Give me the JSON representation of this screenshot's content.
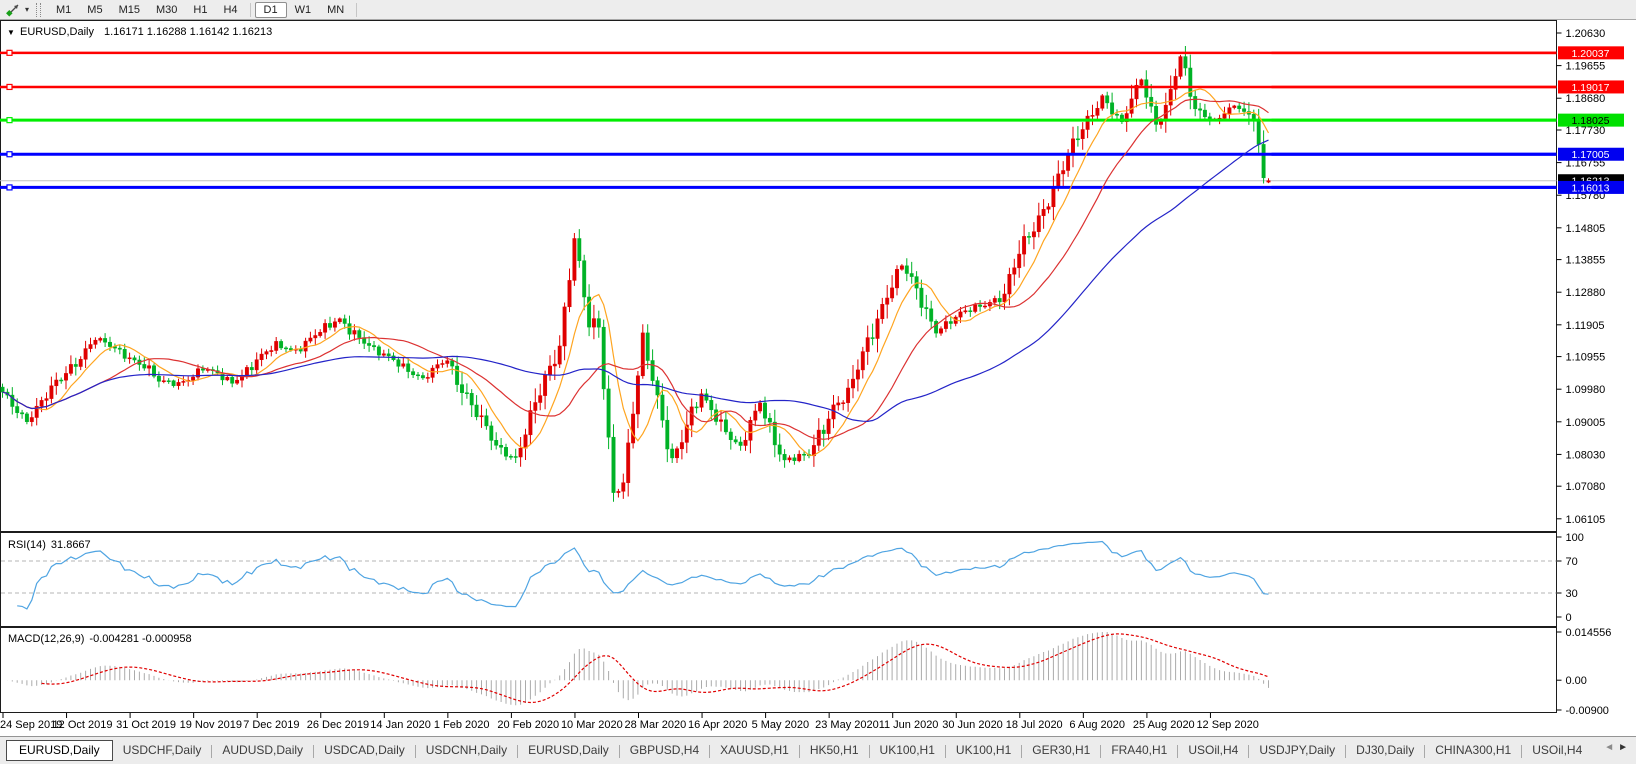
{
  "icons": {
    "collapse_triangle": "▼",
    "tool_caret": "▾",
    "scroll_left": "◄",
    "scroll_right": "►"
  },
  "toolbar": {
    "timeframe_groups": [
      [
        "M1",
        "M5",
        "M15",
        "M30",
        "H1",
        "H4"
      ],
      [
        "D1",
        "W1",
        "MN"
      ]
    ],
    "active_timeframe": "D1"
  },
  "chart_data": {
    "type": "candlestick",
    "title": "EURUSD,Daily",
    "quote_line": "1.16171 1.16288 1.16142 1.16213",
    "quote": {
      "open": "1.16171",
      "high": "1.16288",
      "low": "1.16142",
      "close": "1.16213"
    },
    "bar_count": 260,
    "ylim": [
      1.06105,
      1.2063
    ],
    "colors": {
      "bull_candle": "#DF0000",
      "bear_candle": "#00B227",
      "ma_fast": "#FFA520",
      "ma_mid": "#DC3232",
      "ma_slow": "#2424C8",
      "current_price_line": "#C0C0C0",
      "rsi_line": "#4FA4E2",
      "rsi_levels": "#B4B4B4",
      "macd_bars": "#ABABAB",
      "macd_signal": "#E00000"
    },
    "close_anchors": [
      [
        0,
        1.0985
      ],
      [
        5,
        1.0905
      ],
      [
        12,
        1.103
      ],
      [
        19,
        1.115
      ],
      [
        24,
        1.111
      ],
      [
        29,
        1.107
      ],
      [
        32,
        1.102
      ],
      [
        36,
        1.1015
      ],
      [
        41,
        1.106
      ],
      [
        47,
        1.102
      ],
      [
        56,
        1.113
      ],
      [
        60,
        1.1115
      ],
      [
        69,
        1.121
      ],
      [
        76,
        1.111
      ],
      [
        80,
        1.109
      ],
      [
        86,
        1.1025
      ],
      [
        91,
        1.109
      ],
      [
        96,
        1.0945
      ],
      [
        101,
        1.083
      ],
      [
        105,
        1.079
      ],
      [
        111,
        1.1025
      ],
      [
        114,
        1.1135
      ],
      [
        117,
        1.145
      ],
      [
        119,
        1.127
      ],
      [
        120,
        1.1185
      ],
      [
        122,
        1.118
      ],
      [
        125,
        1.069
      ],
      [
        127,
        1.072
      ],
      [
        131,
        1.114
      ],
      [
        133,
        1.103
      ],
      [
        137,
        1.079
      ],
      [
        143,
        1.098
      ],
      [
        151,
        1.082
      ],
      [
        155,
        1.0955
      ],
      [
        160,
        1.0785
      ],
      [
        165,
        1.08
      ],
      [
        170,
        1.095
      ],
      [
        173,
        1.098
      ],
      [
        177,
        1.1135
      ],
      [
        181,
        1.129
      ],
      [
        184,
        1.137
      ],
      [
        191,
        1.1175
      ],
      [
        196,
        1.122
      ],
      [
        198,
        1.1235
      ],
      [
        205,
        1.128
      ],
      [
        208,
        1.14
      ],
      [
        214,
        1.157
      ],
      [
        221,
        1.178
      ],
      [
        225,
        1.1875
      ],
      [
        229,
        1.179
      ],
      [
        233,
        1.193
      ],
      [
        236,
        1.1795
      ],
      [
        238,
        1.183
      ],
      [
        241,
        1.199
      ],
      [
        244,
        1.184
      ],
      [
        248,
        1.18
      ],
      [
        252,
        1.1845
      ],
      [
        255,
        1.182
      ],
      [
        256,
        1.18
      ],
      [
        257,
        1.173
      ],
      [
        258,
        1.163
      ],
      [
        259,
        1.16213
      ]
    ],
    "moving_averages": [
      {
        "period": 8,
        "color_key": "ma_fast"
      },
      {
        "period": 21,
        "color_key": "ma_mid"
      },
      {
        "period": 55,
        "color_key": "ma_slow"
      }
    ],
    "horizontal_lines": [
      {
        "price": 1.20037,
        "label": "1.20037",
        "color": "#FF0000",
        "tag_bg": "#FF0000",
        "tag_fg": "#FFFFFF",
        "width": 2.5
      },
      {
        "price": 1.19017,
        "label": "1.19017",
        "color": "#FF0000",
        "tag_bg": "#FF0000",
        "tag_fg": "#FFFFFF",
        "width": 2.5
      },
      {
        "price": 1.18025,
        "label": "1.18025",
        "color": "#00EE00",
        "tag_bg": "#00E000",
        "tag_fg": "#000000",
        "width": 3
      },
      {
        "price": 1.17005,
        "label": "1.17005",
        "color": "#0000FF",
        "tag_bg": "#0000F0",
        "tag_fg": "#FFFFFF",
        "width": 3
      },
      {
        "price": 1.16013,
        "label": "1.16013",
        "color": "#0000FF",
        "tag_bg": "#0000F0",
        "tag_fg": "#FFFFFF",
        "width": 3
      }
    ],
    "current_price": {
      "value": 1.16213,
      "label": "1.16213",
      "tag_bg": "#000000",
      "tag_fg": "#FFFFFF"
    },
    "price_axis_ticks": [
      "1.20630",
      "1.19655",
      "1.18680",
      "1.17730",
      "1.16755",
      "1.15780",
      "1.14805",
      "1.13855",
      "1.12880",
      "1.11905",
      "1.10955",
      "1.09980",
      "1.09005",
      "1.08030",
      "1.07080",
      "1.06105"
    ],
    "date_axis_labels": [
      "24 Sep 2019",
      "12 Oct 2019",
      "31 Oct 2019",
      "19 Nov 2019",
      "7 Dec 2019",
      "26 Dec 2019",
      "14 Jan 2020",
      "1 Feb 2020",
      "20 Feb 2020",
      "10 Mar 2020",
      "28 Mar 2020",
      "16 Apr 2020",
      "5 May 2020",
      "23 May 2020",
      "11 Jun 2020",
      "30 Jun 2020",
      "18 Jul 2020",
      "6 Aug 2020",
      "25 Aug 2020",
      "12 Sep 2020"
    ],
    "rsi": {
      "label": "RSI(14)",
      "value": "31.8667",
      "period": 14,
      "levels": [
        70,
        30
      ],
      "axis_ticks": [
        [
          "100",
          100
        ],
        [
          "70",
          70
        ],
        [
          "30",
          30
        ],
        [
          "0",
          0
        ]
      ]
    },
    "macd": {
      "label": "MACD(12,26,9)",
      "values": "-0.004281 -0.000958",
      "fast": 12,
      "slow": 26,
      "signal": 9,
      "axis_ticks": [
        [
          "0.014556",
          0.014556
        ],
        [
          "0.00",
          0
        ],
        [
          "-0.00900",
          -0.009
        ]
      ]
    }
  },
  "tabs": {
    "items": [
      {
        "label": "EURUSD,Daily",
        "active": true
      },
      {
        "label": "USDCHF,Daily"
      },
      {
        "label": "AUDUSD,Daily"
      },
      {
        "label": "USDCAD,Daily"
      },
      {
        "label": "USDCNH,Daily"
      },
      {
        "label": "EURUSD,Daily"
      },
      {
        "label": "GBPUSD,H4"
      },
      {
        "label": "XAUUSD,H1"
      },
      {
        "label": "HK50,H1"
      },
      {
        "label": "UK100,H1"
      },
      {
        "label": "UK100,H1"
      },
      {
        "label": "GER30,H1"
      },
      {
        "label": "FRA40,H1"
      },
      {
        "label": "USOil,H4"
      },
      {
        "label": "USDJPY,Daily"
      },
      {
        "label": "DJ30,Daily"
      },
      {
        "label": "CHINA300,H1"
      },
      {
        "label": "USOil,H4"
      }
    ]
  }
}
